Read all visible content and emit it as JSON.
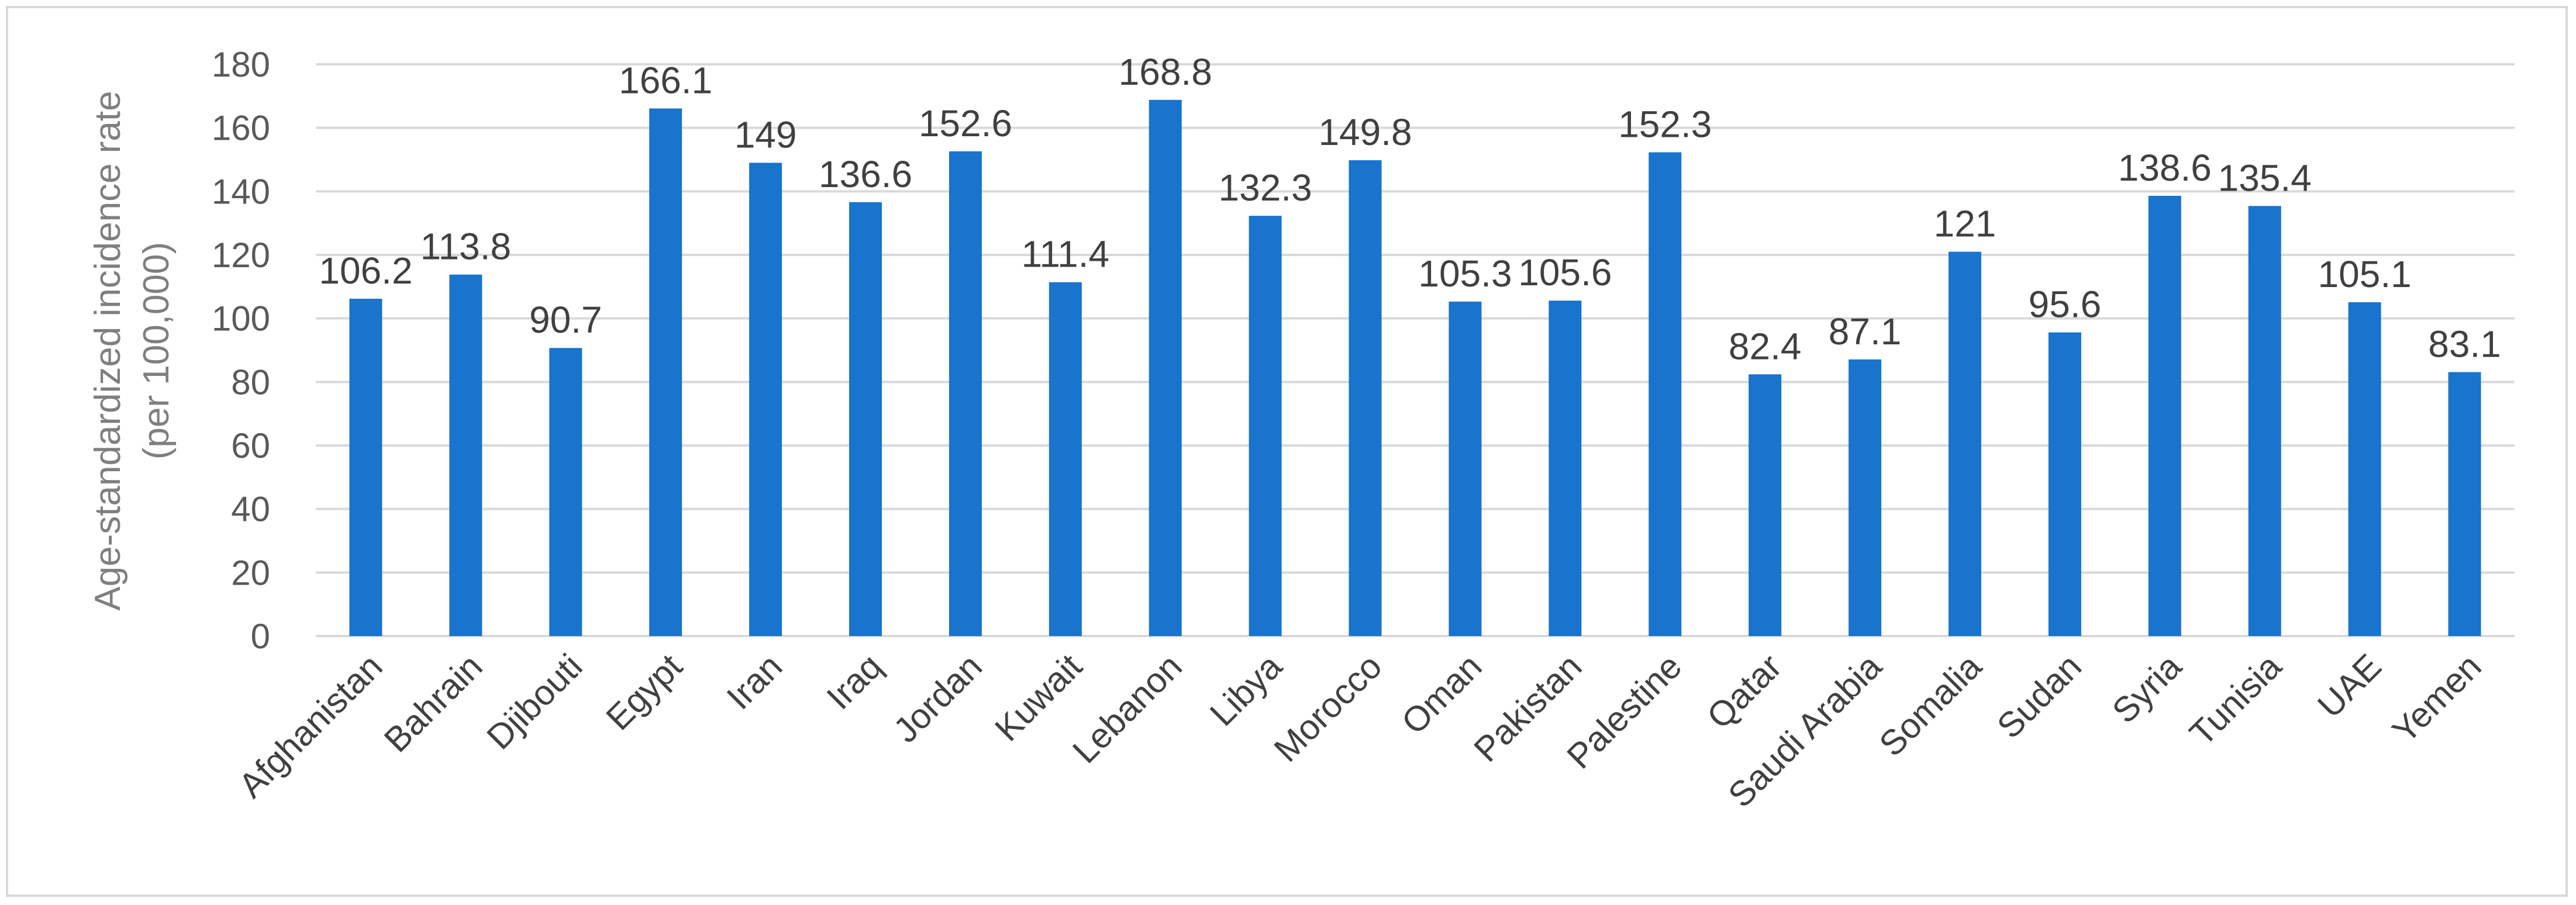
{
  "chart_data": {
    "type": "bar",
    "categories": [
      "Afghanistan",
      "Bahrain",
      "Djibouti",
      "Egypt",
      "Iran",
      "Iraq",
      "Jordan",
      "Kuwait",
      "Lebanon",
      "Libya",
      "Morocco",
      "Oman",
      "Pakistan",
      "Palestine",
      "Qatar",
      "Saudi Arabia",
      "Somalia",
      "Sudan",
      "Syria",
      "Tunisia",
      "UAE",
      "Yemen"
    ],
    "values": [
      106.2,
      113.8,
      90.7,
      166.1,
      149,
      136.6,
      152.6,
      111.4,
      168.8,
      132.3,
      149.8,
      105.3,
      105.6,
      152.3,
      82.4,
      87.1,
      121,
      95.6,
      138.6,
      135.4,
      105.1,
      83.1
    ],
    "data_labels": [
      "106.2",
      "113.8",
      "90.7",
      "166.1",
      "149",
      "136.6",
      "152.6",
      "111.4",
      "168.8",
      "132.3",
      "149.8",
      "105.3",
      "105.6",
      "152.3",
      "82.4",
      "87.1",
      "121",
      "95.6",
      "138.6",
      "135.4",
      "105.1",
      "83.1"
    ],
    "ylabel_line1": "Age-standardized incidence rate",
    "ylabel_line2": "(per 100,000)",
    "xlabel": "",
    "ylim": [
      0,
      180
    ],
    "yticks": [
      0,
      20,
      40,
      60,
      80,
      100,
      120,
      140,
      160,
      180
    ],
    "grid": true,
    "legend": "none",
    "bar_color": "#1874CD",
    "grid_color": "#d9d9d9"
  }
}
